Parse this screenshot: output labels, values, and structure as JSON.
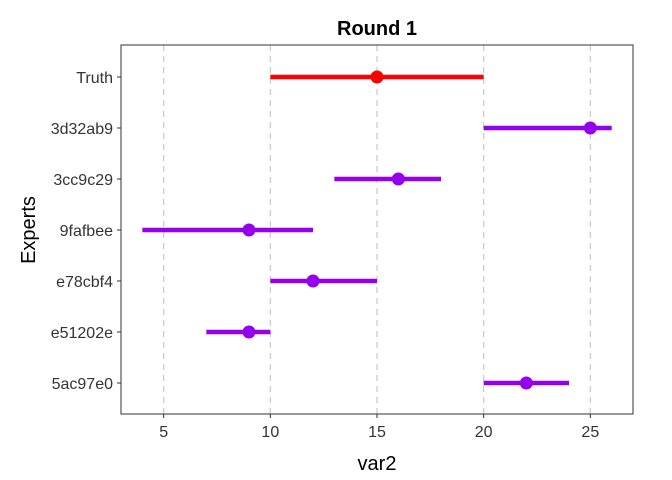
{
  "chart_data": {
    "type": "errorbar",
    "title": "Round 1",
    "xlabel": "var2",
    "ylabel": "Experts",
    "xlim": [
      3,
      27
    ],
    "x_ticks": [
      5,
      10,
      15,
      20,
      25
    ],
    "grid": "vertical dashed",
    "legend": "none",
    "colors": {
      "truth": "#ff0000",
      "expert": "#9400ee"
    },
    "rows": [
      {
        "label": "Truth",
        "low": 10,
        "point": 15,
        "high": 20,
        "group": "truth"
      },
      {
        "label": "3d32ab9",
        "low": 20,
        "point": 25,
        "high": 26,
        "group": "expert"
      },
      {
        "label": "3cc9c29",
        "low": 13,
        "point": 16,
        "high": 18,
        "group": "expert"
      },
      {
        "label": "9fafbee",
        "low": 4,
        "point": 9,
        "high": 12,
        "group": "expert"
      },
      {
        "label": "e78cbf4",
        "low": 10,
        "point": 12,
        "high": 15,
        "group": "expert"
      },
      {
        "label": "e51202e",
        "low": 7,
        "point": 9,
        "high": 10,
        "group": "expert"
      },
      {
        "label": "5ac97e0",
        "low": 20,
        "point": 22,
        "high": 24,
        "group": "expert"
      }
    ]
  }
}
